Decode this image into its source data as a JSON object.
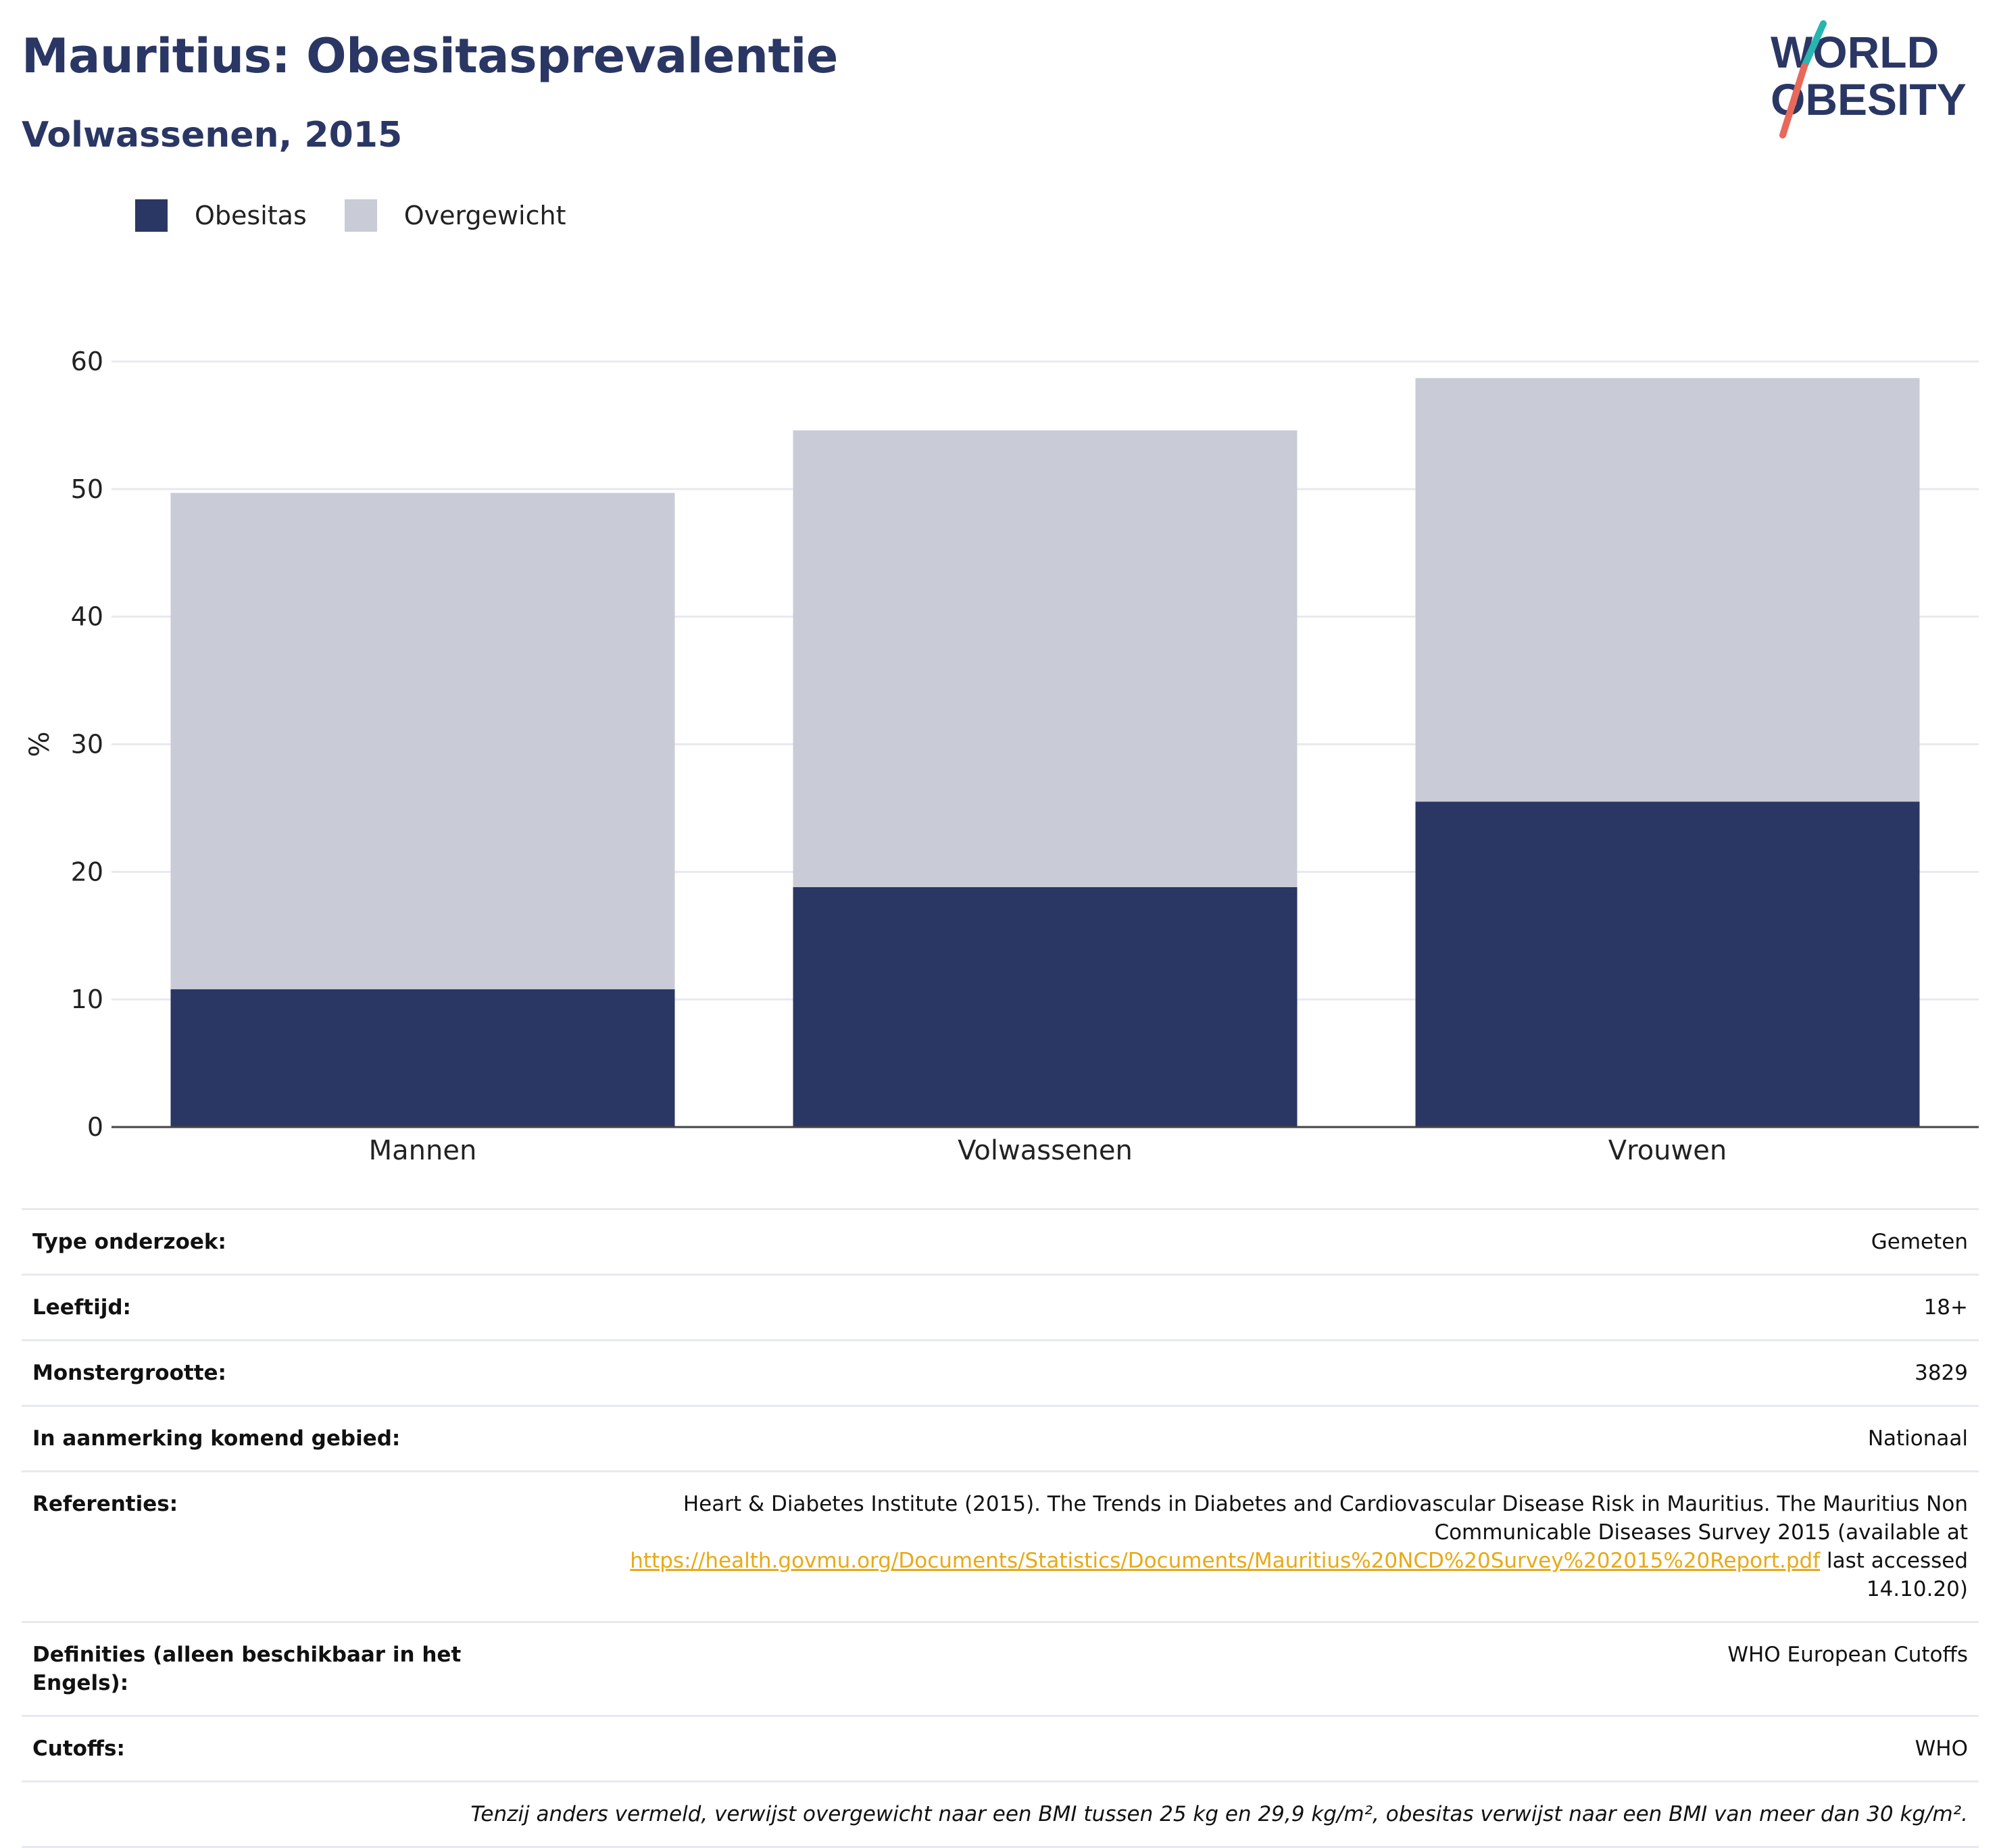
{
  "title": "Mauritius: Obesitasprevalentie",
  "subtitle": "Volwassenen, 2015",
  "logo": {
    "line1": "WORLD",
    "line2": "OBESITY"
  },
  "colors": {
    "obesity": "#2a3764",
    "overweight": "#c9cbd7",
    "link": "#e8a915",
    "logo_slash_top": "#27b5b0",
    "logo_slash_bottom": "#e8685a"
  },
  "legend": [
    {
      "label": "Obesitas",
      "color": "#2a3764"
    },
    {
      "label": "Overgewicht",
      "color": "#c9cbd7"
    }
  ],
  "chart_data": {
    "type": "bar",
    "stacked": true,
    "categories": [
      "Mannen",
      "Volwassenen",
      "Vrouwen"
    ],
    "series": [
      {
        "name": "Obesitas",
        "values": [
          10.8,
          18.8,
          25.5
        ]
      },
      {
        "name": "Overgewicht",
        "values": [
          38.9,
          35.8,
          33.2
        ]
      }
    ],
    "totals": [
      49.7,
      54.6,
      58.7
    ],
    "ylabel": "%",
    "ylim": [
      0,
      60
    ],
    "yticks": [
      0,
      10,
      20,
      30,
      40,
      50,
      60
    ],
    "grid": true,
    "legend_position": "top-left"
  },
  "meta": {
    "survey_type": {
      "label": "Type onderzoek:",
      "value": "Gemeten"
    },
    "age": {
      "label": "Leeftijd:",
      "value": "18+"
    },
    "sample_size": {
      "label": "Monstergrootte:",
      "value": "3829"
    },
    "area": {
      "label": "In aanmerking komend gebied:",
      "value": "Nationaal"
    },
    "references": {
      "label": "Referenties:",
      "text_before": "Heart & Diabetes Institute (2015). The Trends in Diabetes and Cardiovascular Disease Risk in Mauritius. The Mauritius Non Communicable Diseases Survey 2015 (available at",
      "link": "https://health.govmu.org/Documents/Statistics/Documents/Mauritius%20NCD%20Survey%202015%20Report.pdf",
      "text_after": "last accessed 14.10.20)"
    },
    "definitions": {
      "label": "Definities (alleen beschikbaar in het Engels):",
      "value": "WHO European Cutoffs"
    },
    "cutoffs": {
      "label": "Cutoffs:",
      "value": "WHO"
    },
    "note": "Tenzij anders vermeld, verwijst overgewicht naar een BMI tussen 25 kg en 29,9 kg/m², obesitas verwijst naar een BMI van meer dan 30 kg/m²."
  }
}
